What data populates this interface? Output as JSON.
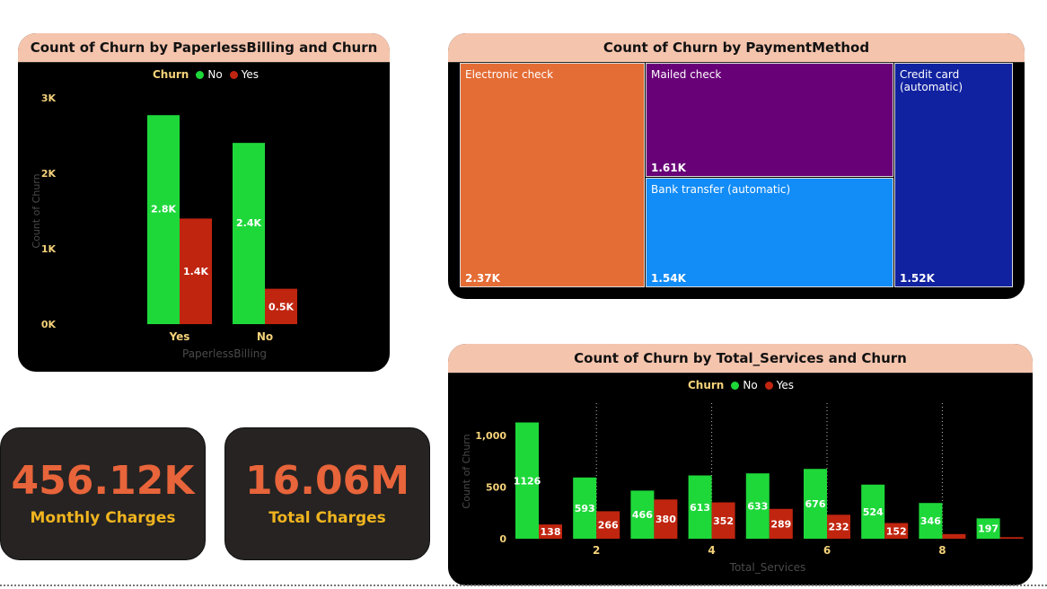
{
  "colors": {
    "no": "#1ed83a",
    "yes": "#c0250f",
    "value_orange": "#e8643a",
    "label_gold": "#f0b41f",
    "header_peach": "#f5c4ad"
  },
  "kpis": [
    {
      "value": "456.12K",
      "label": "Monthly Charges"
    },
    {
      "value": "16.06M",
      "label": "Total Charges"
    }
  ],
  "chart_data": [
    {
      "type": "bar",
      "title": "Count of Churn by PaperlessBilling and Churn",
      "legend_title": "Churn",
      "legend_placement": "top",
      "categories": [
        "Yes",
        "No"
      ],
      "series": [
        {
          "name": "No",
          "values": [
            2771,
            2403
          ],
          "labels": [
            "2.8K",
            "2.4K"
          ]
        },
        {
          "name": "Yes",
          "values": [
            1400,
            469
          ],
          "labels": [
            "1.4K",
            "0.5K"
          ]
        }
      ],
      "xlabel": "PaperlessBilling",
      "ylabel": "Count of Churn",
      "ylim": [
        0,
        3000
      ],
      "yticks": [
        "0K",
        "1K",
        "2K",
        "3K"
      ],
      "grid": false
    },
    {
      "type": "treemap",
      "title": "Count of Churn by PaymentMethod",
      "items": [
        {
          "name": "Electronic check",
          "value": 2370,
          "label": "2.37K",
          "color": "#e46c35"
        },
        {
          "name": "Mailed check",
          "value": 1610,
          "label": "1.61K",
          "color": "#680078"
        },
        {
          "name": "Bank transfer (automatic)",
          "value": 1540,
          "label": "1.54K",
          "color": "#128cf7"
        },
        {
          "name": "Credit card (automatic)",
          "value": 1520,
          "label": "1.52K",
          "color": "#1122a0"
        }
      ]
    },
    {
      "type": "bar",
      "title": "Count of Churn by Total_Services and Churn",
      "legend_title": "Churn",
      "legend_placement": "top",
      "x": [
        1,
        2,
        3,
        4,
        5,
        6,
        7,
        8,
        9
      ],
      "series": [
        {
          "name": "No",
          "values": [
            1126,
            593,
            466,
            613,
            633,
            676,
            524,
            346,
            197
          ]
        },
        {
          "name": "Yes",
          "values": [
            138,
            266,
            380,
            352,
            289,
            232,
            152,
            45,
            15
          ]
        }
      ],
      "labels_no": [
        "1126",
        "593",
        "466",
        "613",
        "633",
        "676",
        "524",
        "346",
        "197"
      ],
      "labels_yes": [
        "138",
        "266",
        "380",
        "352",
        "289",
        "232",
        "152",
        "",
        ""
      ],
      "xticks": [
        "2",
        "4",
        "6",
        "8"
      ],
      "xlabel": "Total_Services",
      "ylabel": "Count of Churn",
      "ylim": [
        0,
        1150
      ],
      "yticks": [
        "0",
        "500",
        "1,000"
      ],
      "grid": "dotted vertical"
    }
  ]
}
